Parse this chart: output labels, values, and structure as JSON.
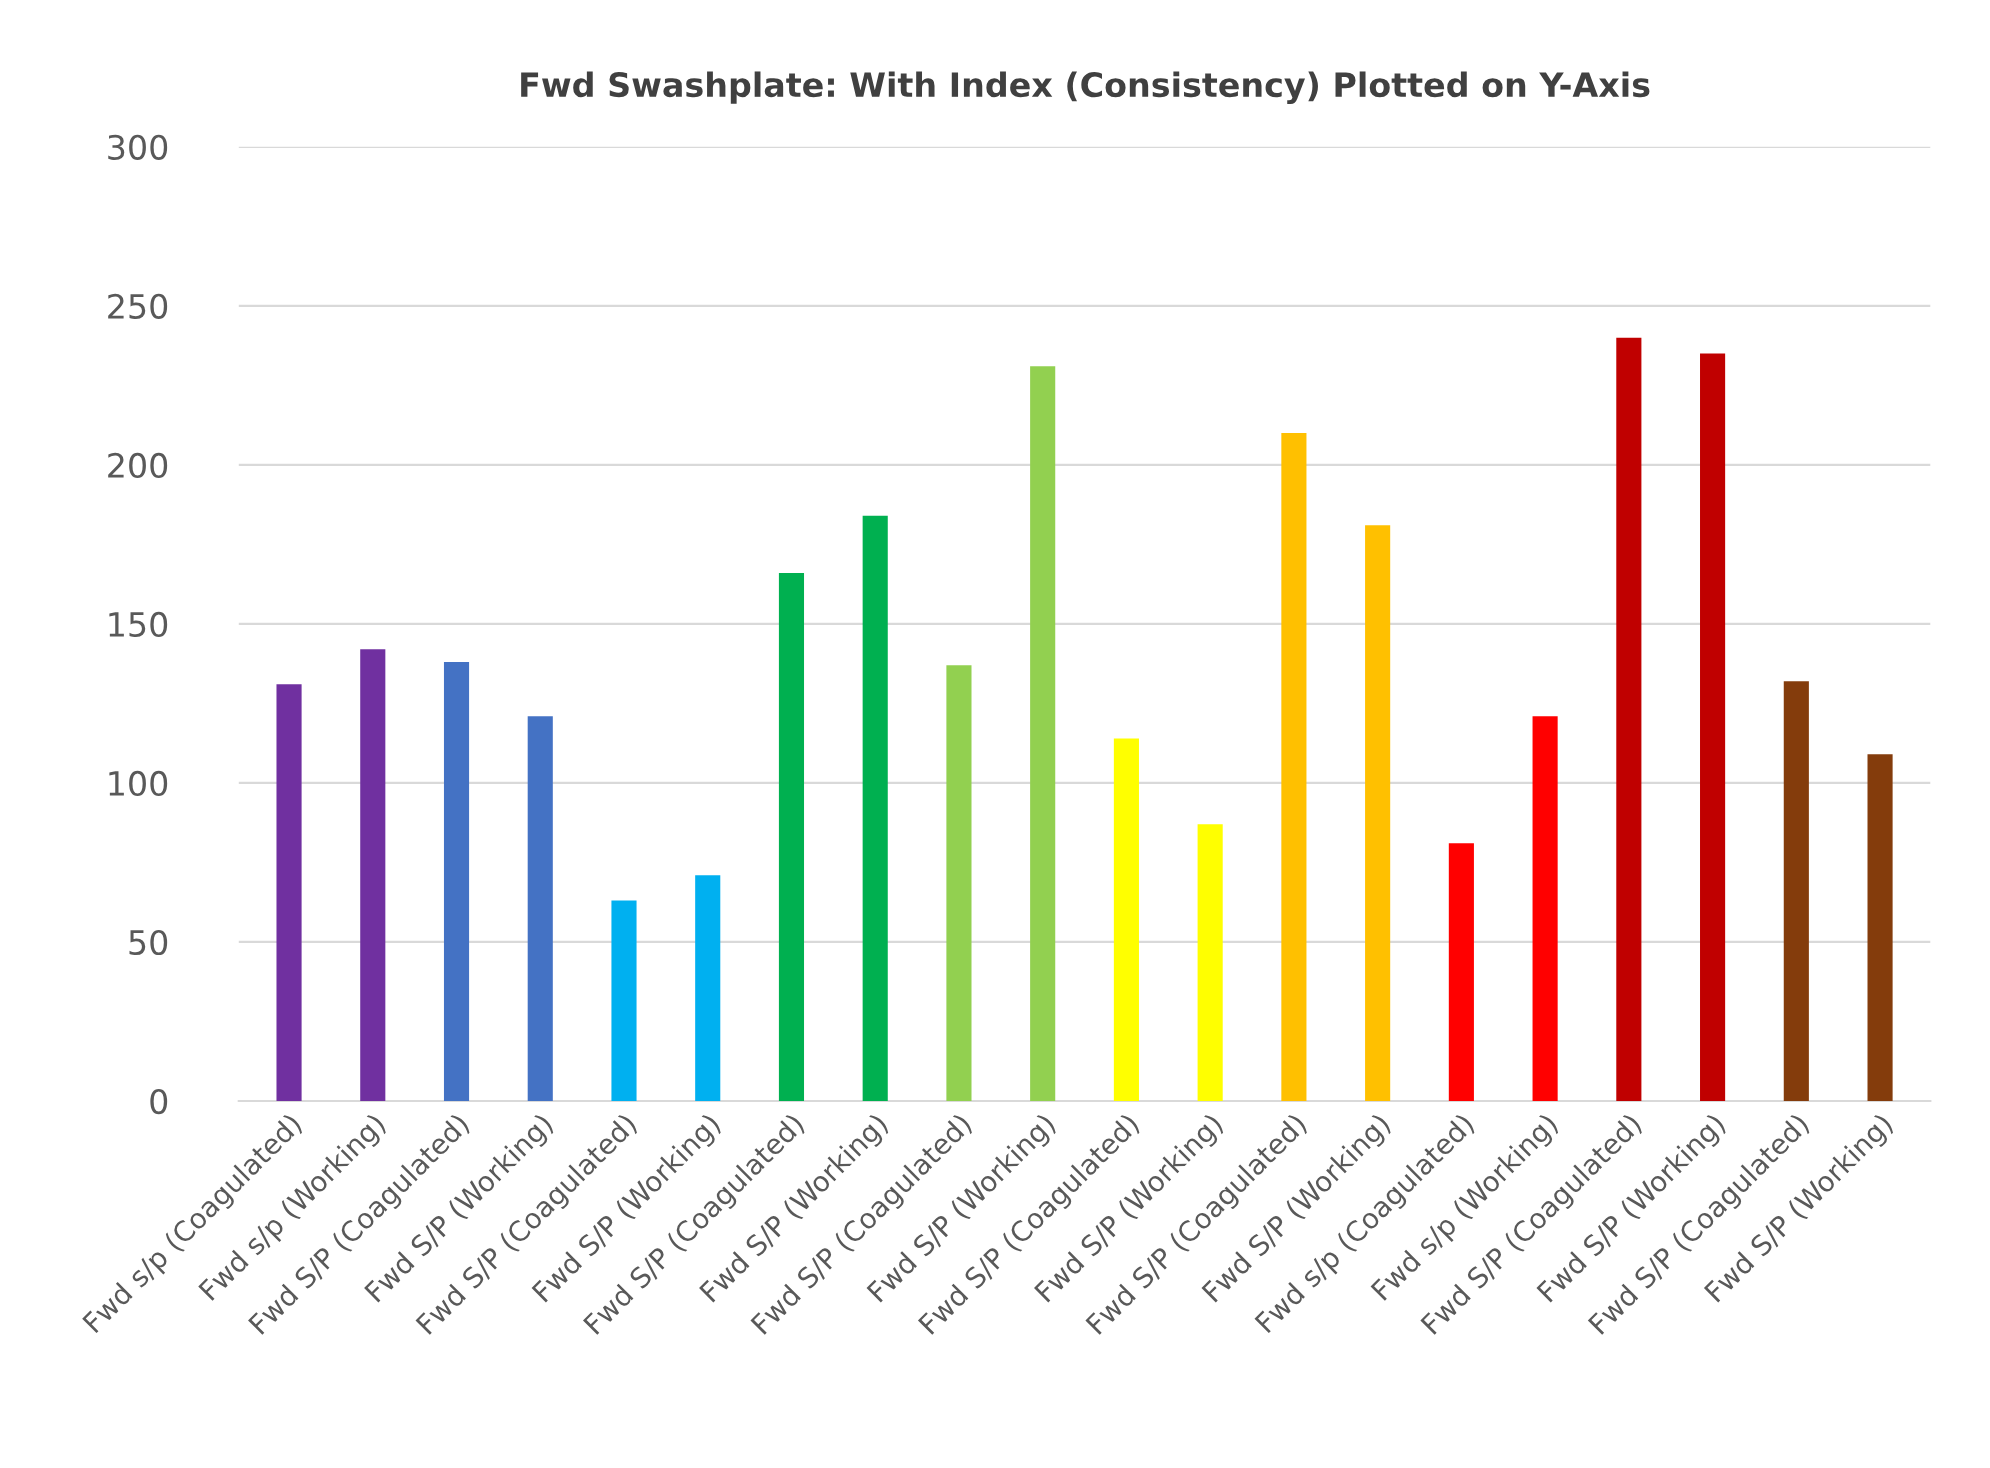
{
  "chart_data": {
    "type": "bar",
    "title": "Fwd Swashplate: With Index (Consistency) Plotted on Y-Axis",
    "categories": [
      "Fwd s/p (Coagulated)",
      "Fwd s/p (Working)",
      "Fwd S/P (Coagulated)",
      "Fwd S/P (Working)",
      "Fwd S/P (Coagulated)",
      "Fwd S/P (Working)",
      "Fwd S/P (Coagulated)",
      "Fwd S/P (Working)",
      "Fwd S/P (Coagulated)",
      "Fwd S/P (Working)",
      "Fwd S/P (Coagulated)",
      "Fwd S/P (Working)",
      "Fwd S/P (Coagulated)",
      "Fwd S/P (Working)",
      "Fwd s/p (Coagulated)",
      "Fwd s/p (Working)",
      "Fwd S/P (Coagulated)",
      "Fwd S/P (Working)",
      "Fwd S/P (Coagulated)",
      "Fwd S/P (Working)"
    ],
    "values": [
      131,
      142,
      138,
      121,
      63,
      71,
      166,
      184,
      137,
      231,
      114,
      87,
      210,
      181,
      81,
      121,
      240,
      235,
      132,
      109
    ],
    "colors": [
      "#7030a0",
      "#7030a0",
      "#4472c4",
      "#4472c4",
      "#00b0f0",
      "#00b0f0",
      "#00b050",
      "#00b050",
      "#92d050",
      "#92d050",
      "#ffff00",
      "#ffff00",
      "#ffc000",
      "#ffc000",
      "#ff0000",
      "#ff0000",
      "#c00000",
      "#c00000",
      "#843c0c",
      "#843c0c"
    ],
    "ylim": [
      0,
      300
    ],
    "yticks": [
      0,
      50,
      100,
      150,
      200,
      250,
      300
    ],
    "grid": "y",
    "legend": false
  }
}
